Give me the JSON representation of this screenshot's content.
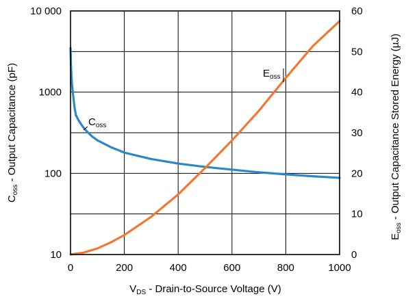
{
  "chart_data": {
    "type": "line",
    "xlabel": {
      "main": "V",
      "sub": "DS",
      "rest": " - Drain-to-Source Voltage (V)"
    },
    "ylabel_left": {
      "main": "C",
      "sub": "oss",
      "rest": " - Output Capacitance (pF)"
    },
    "ylabel_right": {
      "main": "E",
      "sub": "oss",
      "rest": " - Output Capacitance Stored Energy (µJ)"
    },
    "x_ticks": [
      "0",
      "200",
      "400",
      "600",
      "800",
      "1000"
    ],
    "y_left_ticks": [
      "10",
      "100",
      "1000",
      "10 000"
    ],
    "y_right_ticks": [
      "0",
      "10",
      "20",
      "30",
      "40",
      "50",
      "60"
    ],
    "xlim": [
      0,
      1000
    ],
    "ylim_left": [
      10,
      10000
    ],
    "y_left_scale": "log",
    "ylim_right": [
      0,
      60
    ],
    "grid": true,
    "series": [
      {
        "name": "C",
        "name_sub": "oss",
        "axis": "left",
        "color": "#2c87c8",
        "x": [
          0,
          2,
          5,
          10,
          15,
          20,
          30,
          40,
          50,
          60,
          80,
          100,
          150,
          200,
          300,
          400,
          500,
          600,
          700,
          800,
          900,
          1000
        ],
        "y": [
          3500,
          2000,
          1300,
          900,
          650,
          520,
          450,
          400,
          360,
          330,
          285,
          255,
          210,
          180,
          150,
          132,
          120,
          111,
          103,
          97,
          92,
          88
        ]
      },
      {
        "name": "E",
        "name_sub": "oss",
        "axis": "right",
        "color": "#f07832",
        "x": [
          0,
          50,
          100,
          150,
          200,
          300,
          400,
          500,
          600,
          700,
          800,
          900,
          1000
        ],
        "y": [
          0,
          0.5,
          1.5,
          3,
          4.8,
          9.3,
          14.8,
          21.3,
          28.1,
          35.4,
          43.5,
          51.3,
          57.5
        ]
      }
    ]
  }
}
